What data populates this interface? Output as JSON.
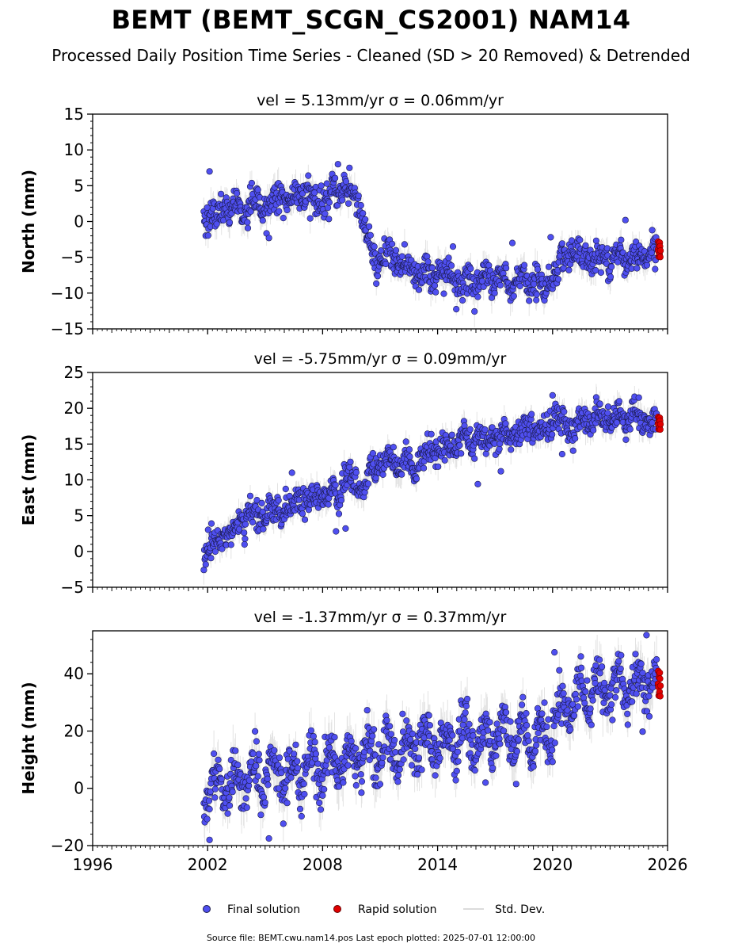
{
  "title": "BEMT (BEMT_SCGN_CS2001) NAM14",
  "subtitle": "Processed Daily Position Time Series - Cleaned (SD > 20 Removed) & Detrended",
  "source": "Source file: BEMT.cwu.nam14.pos  Last epoch plotted: 2025-07-01 12:00:00",
  "legend": {
    "final": "Final solution",
    "rapid": "Rapid solution",
    "sd": "Std. Dev."
  },
  "colors": {
    "final": "#4f4ff0",
    "final_edge": "#1a1a4a",
    "rapid": "#e00000",
    "sd": "#9a9a9a"
  },
  "chart_data": [
    {
      "type": "scatter",
      "panel": "north",
      "title": "vel = 5.13mm/yr   σ = 0.06mm/yr",
      "ylabel": "North (mm)",
      "xlim": [
        1996,
        2026
      ],
      "ylim": [
        -15,
        15
      ],
      "yticks": [
        -15,
        -10,
        -5,
        0,
        5,
        10,
        15
      ],
      "trend": [
        [
          2001.8,
          1.0
        ],
        [
          2003,
          1.5
        ],
        [
          2005,
          2.5
        ],
        [
          2007,
          3.5
        ],
        [
          2009,
          4.0
        ],
        [
          2009.9,
          3.5
        ],
        [
          2010.3,
          -2.5
        ],
        [
          2011,
          -5.5
        ],
        [
          2012.5,
          -6.8
        ],
        [
          2014,
          -7.5
        ],
        [
          2016,
          -8.0
        ],
        [
          2018,
          -8.5
        ],
        [
          2019.6,
          -8.8
        ],
        [
          2020.1,
          -6.8
        ],
        [
          2021,
          -5.5
        ],
        [
          2023,
          -4.8
        ],
        [
          2025.5,
          -4.2
        ]
      ],
      "rapid_range": [
        -5.0,
        -2.8
      ],
      "outliers": [
        [
          2002.1,
          7.0
        ],
        [
          2008.8,
          8.0
        ],
        [
          2009.4,
          7.5
        ],
        [
          2014.8,
          -3.5
        ],
        [
          2017.9,
          -3.0
        ],
        [
          2019.9,
          -2.2
        ],
        [
          2023.8,
          0.2
        ],
        [
          2005.2,
          -2.3
        ]
      ]
    },
    {
      "type": "scatter",
      "panel": "east",
      "title": "vel = -5.75mm/yr   σ = 0.09mm/yr",
      "ylabel": "East (mm)",
      "xlim": [
        1996,
        2026
      ],
      "ylim": [
        -5,
        25
      ],
      "yticks": [
        -5,
        0,
        5,
        10,
        15,
        20,
        25
      ],
      "trend": [
        [
          2001.8,
          -0.5
        ],
        [
          2003,
          2.5
        ],
        [
          2004.5,
          5.0
        ],
        [
          2006,
          6.5
        ],
        [
          2007.5,
          7.8
        ],
        [
          2009,
          8.8
        ],
        [
          2010,
          10.0
        ],
        [
          2011,
          11.5
        ],
        [
          2012.5,
          12.5
        ],
        [
          2014,
          14.2
        ],
        [
          2016,
          15.5
        ],
        [
          2018,
          16.3
        ],
        [
          2019.8,
          17.0
        ],
        [
          2020.3,
          18.0
        ],
        [
          2021,
          17.8
        ],
        [
          2023,
          19.2
        ],
        [
          2025.5,
          18.3
        ]
      ],
      "rapid_range": [
        17.0,
        18.8
      ],
      "outliers": [
        [
          2008.7,
          2.8
        ],
        [
          2009.2,
          3.2
        ],
        [
          2016.1,
          9.4
        ],
        [
          2017.3,
          11.2
        ],
        [
          2020,
          21.8
        ],
        [
          2020.5,
          13.6
        ],
        [
          2002.2,
          3.9
        ],
        [
          2006.4,
          11.0
        ]
      ]
    },
    {
      "type": "scatter",
      "panel": "height",
      "title": "vel = -1.37mm/yr   σ = 0.37mm/yr",
      "ylabel": "Height (mm)",
      "xlim": [
        1996,
        2026
      ],
      "ylim": [
        -20,
        55
      ],
      "yticks": [
        -20,
        0,
        20,
        40
      ],
      "trend": [
        [
          2001.8,
          0.0
        ],
        [
          2004,
          4.0
        ],
        [
          2006,
          5.0
        ],
        [
          2008,
          6.5
        ],
        [
          2010,
          11.0
        ],
        [
          2012,
          14.5
        ],
        [
          2014,
          16.5
        ],
        [
          2016,
          18.0
        ],
        [
          2018,
          18.5
        ],
        [
          2019.6,
          17.5
        ],
        [
          2020.3,
          26.0
        ],
        [
          2021,
          30.0
        ],
        [
          2022.5,
          35.0
        ],
        [
          2024,
          36.0
        ],
        [
          2025.5,
          35.5
        ]
      ],
      "rapid_range": [
        32.0,
        41.0
      ],
      "outliers": [
        [
          2002.1,
          -18.0
        ],
        [
          2005.2,
          -17.5
        ],
        [
          2020.1,
          47.5
        ],
        [
          2024.9,
          53.5
        ],
        [
          2024.7,
          19.8
        ],
        [
          2018.1,
          1.5
        ],
        [
          2016.5,
          2.0
        ]
      ]
    }
  ],
  "xticks": [
    1996,
    2002,
    2008,
    2014,
    2020,
    2026
  ]
}
